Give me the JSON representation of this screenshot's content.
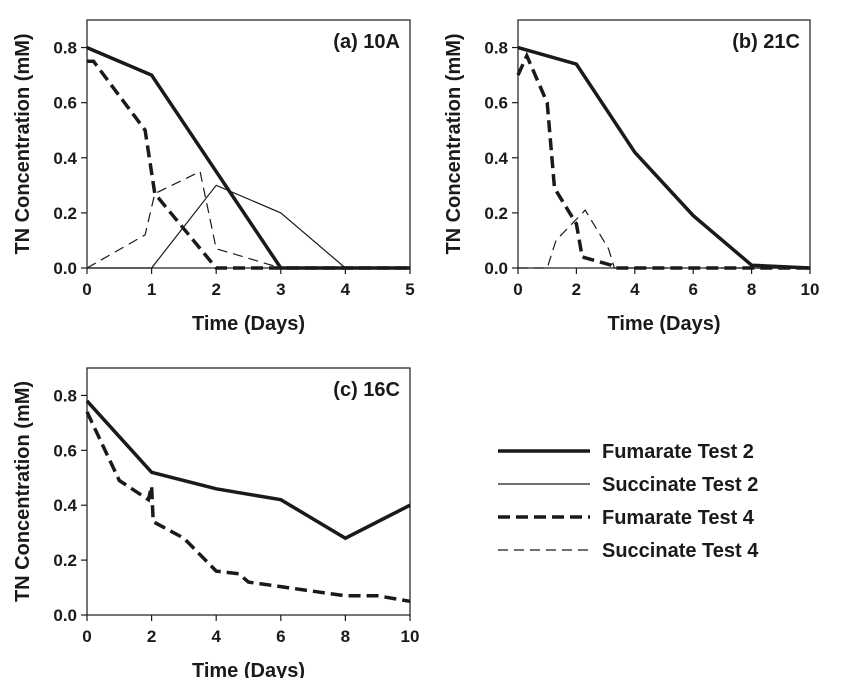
{
  "chart_data": [
    {
      "type": "line",
      "title": "(a) 10A",
      "xlabel": "Time (Days)",
      "ylabel": "TN Concentration (mM)",
      "xlim": [
        0,
        5
      ],
      "ylim": [
        0,
        0.9
      ],
      "xticks": [
        "0",
        "1",
        "2",
        "3",
        "4",
        "5"
      ],
      "yticks": [
        "0.0",
        "0.2",
        "0.4",
        "0.6",
        "0.8"
      ],
      "series": [
        {
          "name": "Fumarate Test 2",
          "points": [
            [
              0,
              0.8
            ],
            [
              1,
              0.7
            ],
            [
              3,
              0
            ],
            [
              5,
              0
            ]
          ]
        },
        {
          "name": "Succinate Test 2",
          "points": [
            [
              0,
              0
            ],
            [
              1,
              0
            ],
            [
              2,
              0.3
            ],
            [
              3,
              0.2
            ],
            [
              4,
              0
            ],
            [
              5,
              0
            ]
          ]
        },
        {
          "name": "Fumarate Test 4",
          "points": [
            [
              0,
              0.75
            ],
            [
              0.1,
              0.75
            ],
            [
              0.9,
              0.5
            ],
            [
              1.05,
              0.27
            ],
            [
              2,
              0
            ],
            [
              5,
              0
            ]
          ]
        },
        {
          "name": "Succinate Test 4",
          "points": [
            [
              0,
              0
            ],
            [
              0.9,
              0.12
            ],
            [
              1.05,
              0.27
            ],
            [
              1.75,
              0.35
            ],
            [
              2,
              0.07
            ],
            [
              3,
              0
            ],
            [
              5,
              0
            ]
          ]
        }
      ]
    },
    {
      "type": "line",
      "title": "(b) 21C",
      "xlabel": "Time (Days)",
      "ylabel": "TN Concentration (mM)",
      "xlim": [
        0,
        10
      ],
      "ylim": [
        0,
        0.9
      ],
      "xticks": [
        "0",
        "2",
        "4",
        "6",
        "8",
        "10"
      ],
      "yticks": [
        "0.0",
        "0.2",
        "0.4",
        "0.6",
        "0.8"
      ],
      "series": [
        {
          "name": "Fumarate Test 2",
          "points": [
            [
              0,
              0.8
            ],
            [
              2,
              0.74
            ],
            [
              4,
              0.42
            ],
            [
              6,
              0.19
            ],
            [
              8,
              0.01
            ],
            [
              10,
              0
            ]
          ]
        },
        {
          "name": "Succinate Test 2",
          "points": []
        },
        {
          "name": "Fumarate Test 4",
          "points": [
            [
              0,
              0.7
            ],
            [
              0.3,
              0.77
            ],
            [
              1,
              0.6
            ],
            [
              1.25,
              0.29
            ],
            [
              2,
              0.16
            ],
            [
              2.2,
              0.04
            ],
            [
              3.2,
              0.01
            ],
            [
              3.3,
              0
            ],
            [
              10,
              0
            ]
          ]
        },
        {
          "name": "Succinate Test 4",
          "points": [
            [
              0,
              0
            ],
            [
              1,
              0
            ],
            [
              1.3,
              0.1
            ],
            [
              2.3,
              0.21
            ],
            [
              3.1,
              0.07
            ],
            [
              3.3,
              0
            ],
            [
              10,
              0
            ]
          ]
        }
      ]
    },
    {
      "type": "line",
      "title": "(c) 16C",
      "xlabel": "Time (Days)",
      "ylabel": "TN Concentration (mM)",
      "xlim": [
        0,
        10
      ],
      "ylim": [
        0,
        0.9
      ],
      "xticks": [
        "0",
        "2",
        "4",
        "6",
        "8",
        "10"
      ],
      "yticks": [
        "0.0",
        "0.2",
        "0.4",
        "0.6",
        "0.8"
      ],
      "series": [
        {
          "name": "Fumarate Test 2",
          "points": [
            [
              0,
              0.78
            ],
            [
              2,
              0.52
            ],
            [
              4,
              0.46
            ],
            [
              6,
              0.42
            ],
            [
              8,
              0.28
            ],
            [
              10,
              0.4
            ]
          ]
        },
        {
          "name": "Succinate Test 2",
          "points": []
        },
        {
          "name": "Fumarate Test 4",
          "points": [
            [
              0,
              0.74
            ],
            [
              1,
              0.49
            ],
            [
              1.9,
              0.42
            ],
            [
              2,
              0.47
            ],
            [
              2.05,
              0.34
            ],
            [
              3,
              0.28
            ],
            [
              4,
              0.16
            ],
            [
              4.7,
              0.15
            ],
            [
              5,
              0.12
            ],
            [
              8,
              0.07
            ],
            [
              9,
              0.07
            ],
            [
              10,
              0.05
            ]
          ]
        },
        {
          "name": "Succinate Test 4",
          "points": []
        }
      ]
    }
  ],
  "legend": {
    "placement": "bottom-right",
    "items": [
      {
        "label": "Fumarate Test 2",
        "style": "thick-solid"
      },
      {
        "label": "Succinate Test 2",
        "style": "thin-solid"
      },
      {
        "label": "Fumarate Test 4",
        "style": "thick-dashed"
      },
      {
        "label": "Succinate Test 4",
        "style": "thin-dashed"
      }
    ]
  },
  "colors": {
    "line": "#1a1a1a",
    "background": "#ffffff"
  }
}
